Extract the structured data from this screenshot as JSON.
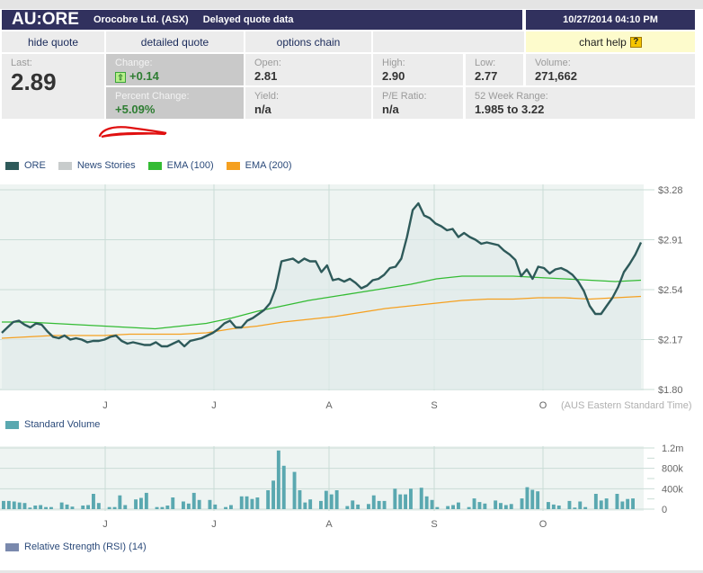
{
  "header": {
    "symbol": "AU:ORE",
    "company": "Orocobre Ltd. (ASX)",
    "delay_note": "Delayed quote data",
    "datetime": "10/27/2014 04:10 PM"
  },
  "nav": {
    "hide_quote": "hide quote",
    "detailed_quote": "detailed quote",
    "options_chain": "options chain",
    "chart_help": "chart help",
    "help_icon": "?"
  },
  "quote": {
    "last_label": "Last:",
    "last": "2.89",
    "change_label": "Change:",
    "change": "+0.14",
    "pct_change_label": "Percent Change:",
    "pct_change": "+5.09%",
    "open_label": "Open:",
    "open": "2.81",
    "yield_label": "Yield:",
    "yield": "n/a",
    "high_label": "High:",
    "high": "2.90",
    "pe_label": "P/E Ratio:",
    "pe": "n/a",
    "low_label": "Low:",
    "low": "2.77",
    "volume_label": "Volume:",
    "volume": "271,662",
    "range_label": "52 Week Range:",
    "range": "1.985 to 3.22"
  },
  "colors": {
    "header_bg": "#31315e",
    "price_line": "#2e5a5a",
    "ema100": "#33bb33",
    "ema200": "#f5a020",
    "volume_bar": "#5aa8b0",
    "rsi": "#7a89ad",
    "news": "#c8cccc",
    "positive": "#2e7d32"
  },
  "legend": {
    "ore": "ORE",
    "news": "News Stories",
    "ema100": "EMA (100)",
    "ema200": "EMA (200)",
    "volume": "Standard Volume",
    "rsi": "Relative Strength (RSI) (14)"
  },
  "chart_data": [
    {
      "type": "line",
      "title": "ORE price",
      "x_tick_labels": [
        "J",
        "J",
        "A",
        "S",
        "O"
      ],
      "timezone_note": "(AUS Eastern Standard Time)",
      "y_tick_labels": [
        "$3.28",
        "$2.91",
        "$2.54",
        "$2.17",
        "$1.80"
      ],
      "ylim": [
        1.8,
        3.28
      ],
      "grid": true,
      "series": [
        {
          "name": "ORE",
          "values": [
            2.22,
            2.26,
            2.3,
            2.31,
            2.28,
            2.26,
            2.29,
            2.28,
            2.23,
            2.19,
            2.18,
            2.2,
            2.17,
            2.18,
            2.17,
            2.15,
            2.16,
            2.16,
            2.17,
            2.19,
            2.2,
            2.16,
            2.14,
            2.15,
            2.14,
            2.13,
            2.13,
            2.15,
            2.12,
            2.12,
            2.14,
            2.16,
            2.12,
            2.16,
            2.17,
            2.18,
            2.2,
            2.22,
            2.25,
            2.29,
            2.31,
            2.26,
            2.26,
            2.31,
            2.33,
            2.36,
            2.39,
            2.44,
            2.55,
            2.75,
            2.76,
            2.77,
            2.74,
            2.77,
            2.75,
            2.75,
            2.67,
            2.72,
            2.61,
            2.62,
            2.6,
            2.62,
            2.59,
            2.55,
            2.57,
            2.61,
            2.62,
            2.65,
            2.7,
            2.71,
            2.77,
            2.93,
            3.13,
            3.18,
            3.09,
            3.07,
            3.03,
            3.01,
            2.98,
            2.99,
            2.93,
            2.96,
            2.93,
            2.91,
            2.88,
            2.89,
            2.88,
            2.87,
            2.83,
            2.8,
            2.76,
            2.64,
            2.69,
            2.62,
            2.71,
            2.7,
            2.66,
            2.69,
            2.7,
            2.68,
            2.65,
            2.6,
            2.53,
            2.42,
            2.36,
            2.36,
            2.42,
            2.48,
            2.56,
            2.67,
            2.73,
            2.8,
            2.89
          ]
        },
        {
          "name": "EMA (100)",
          "values": [
            2.3,
            2.3,
            2.29,
            2.28,
            2.27,
            2.26,
            2.25,
            2.27,
            2.29,
            2.33,
            2.38,
            2.42,
            2.46,
            2.49,
            2.52,
            2.55,
            2.58,
            2.62,
            2.64,
            2.64,
            2.64,
            2.63,
            2.62,
            2.61,
            2.6,
            2.61
          ]
        },
        {
          "name": "EMA (200)",
          "values": [
            2.18,
            2.19,
            2.2,
            2.2,
            2.2,
            2.21,
            2.21,
            2.21,
            2.22,
            2.25,
            2.27,
            2.3,
            2.32,
            2.34,
            2.37,
            2.4,
            2.42,
            2.44,
            2.46,
            2.47,
            2.47,
            2.48,
            2.48,
            2.47,
            2.48,
            2.49
          ]
        }
      ]
    },
    {
      "type": "bar",
      "title": "Standard Volume",
      "x_tick_labels": [
        "J",
        "J",
        "A",
        "S",
        "O"
      ],
      "y_tick_labels": [
        "1.2m",
        "800k",
        "400k",
        "0"
      ],
      "ylim": [
        0,
        1200000
      ],
      "values": [
        160,
        160,
        150,
        130,
        120,
        30,
        70,
        80,
        40,
        40,
        0,
        130,
        90,
        50,
        0,
        70,
        80,
        300,
        120,
        0,
        40,
        40,
        270,
        80,
        0,
        190,
        220,
        320,
        0,
        40,
        40,
        70,
        230,
        0,
        150,
        110,
        320,
        180,
        0,
        180,
        90,
        0,
        40,
        80,
        0,
        250,
        250,
        200,
        230,
        0,
        370,
        560,
        1150,
        850,
        0,
        730,
        370,
        130,
        190,
        0,
        160,
        360,
        290,
        370,
        0,
        60,
        170,
        90,
        0,
        100,
        270,
        160,
        160,
        0,
        400,
        290,
        290,
        400,
        0,
        420,
        250,
        180,
        40,
        0,
        60,
        80,
        130,
        0,
        40,
        210,
        140,
        110,
        0,
        170,
        120,
        80,
        100,
        0,
        210,
        430,
        380,
        350,
        0,
        140,
        90,
        70,
        0,
        160,
        30,
        150,
        40,
        0,
        300,
        170,
        210,
        0,
        300,
        150,
        200,
        210
      ]
    }
  ]
}
